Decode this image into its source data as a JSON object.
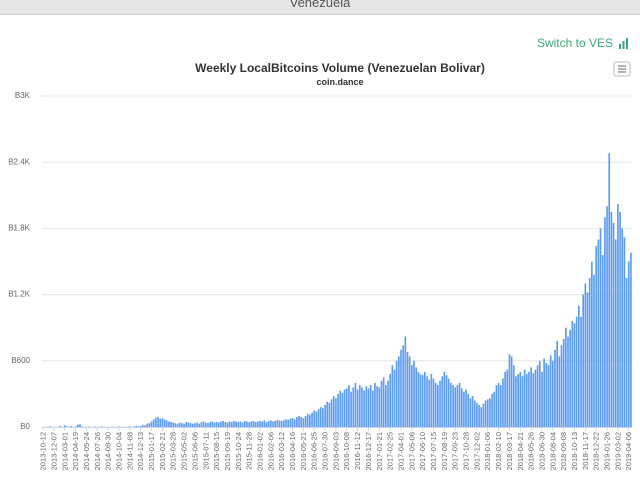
{
  "header": {
    "title": "Venezuela"
  },
  "switch_link": "Switch to VES",
  "chart_data": {
    "type": "bar",
    "title": "Weekly LocalBitcoins Volume (Venezuelan Bolivar)",
    "subtitle": "coin.dance",
    "color": "#5b9bf0",
    "grid": true,
    "ylim": [
      0,
      3000
    ],
    "yticks": [
      {
        "value": 0,
        "label": "B0"
      },
      {
        "value": 600,
        "label": "B600"
      },
      {
        "value": 1200,
        "label": "B1.2K"
      },
      {
        "value": 1800,
        "label": "B1.8K"
      },
      {
        "value": 2400,
        "label": "B2.4K"
      },
      {
        "value": 3000,
        "label": "B3K"
      }
    ],
    "categories": [
      "2013-10-12",
      null,
      null,
      null,
      null,
      "2013-12-07",
      null,
      null,
      null,
      null,
      "2014-03-01",
      null,
      null,
      null,
      null,
      "2014-04-19",
      null,
      null,
      null,
      null,
      "2014-05-24",
      null,
      null,
      null,
      null,
      "2014-07-26",
      null,
      null,
      null,
      null,
      "2014-08-30",
      null,
      null,
      null,
      null,
      "2014-10-04",
      null,
      null,
      null,
      null,
      "2014-11-08",
      null,
      null,
      null,
      null,
      "2014-12-13",
      null,
      null,
      null,
      null,
      "2015-01-17",
      null,
      null,
      null,
      null,
      "2015-02-21",
      null,
      null,
      null,
      null,
      "2015-03-28",
      null,
      null,
      null,
      null,
      "2015-05-02",
      null,
      null,
      null,
      null,
      "2015-06-06",
      null,
      null,
      null,
      null,
      "2015-07-11",
      null,
      null,
      null,
      null,
      "2015-08-15",
      null,
      null,
      null,
      null,
      "2015-09-19",
      null,
      null,
      null,
      null,
      "2015-10-24",
      null,
      null,
      null,
      null,
      "2015-11-28",
      null,
      null,
      null,
      null,
      "2016-01-02",
      null,
      null,
      null,
      null,
      "2016-02-06",
      null,
      null,
      null,
      null,
      "2016-03-12",
      null,
      null,
      null,
      null,
      "2016-04-16",
      null,
      null,
      null,
      null,
      "2016-05-21",
      null,
      null,
      null,
      null,
      "2016-06-25",
      null,
      null,
      null,
      null,
      "2016-07-30",
      null,
      null,
      null,
      null,
      "2016-09-03",
      null,
      null,
      null,
      null,
      "2016-10-08",
      null,
      null,
      null,
      null,
      "2016-11-12",
      null,
      null,
      null,
      null,
      "2016-12-17",
      null,
      null,
      null,
      null,
      "2017-01-21",
      null,
      null,
      null,
      null,
      "2017-02-25",
      null,
      null,
      null,
      null,
      "2017-04-01",
      null,
      null,
      null,
      null,
      "2017-05-06",
      null,
      null,
      null,
      null,
      "2017-06-10",
      null,
      null,
      null,
      null,
      "2017-07-15",
      null,
      null,
      null,
      null,
      "2017-08-19",
      null,
      null,
      null,
      null,
      "2017-09-23",
      null,
      null,
      null,
      null,
      "2017-10-28",
      null,
      null,
      null,
      null,
      "2017-12-02",
      null,
      null,
      null,
      null,
      "2018-01-06",
      null,
      null,
      null,
      null,
      "2018-02-10",
      null,
      null,
      null,
      null,
      "2018-03-17",
      null,
      null,
      null,
      null,
      "2018-04-21",
      null,
      null,
      null,
      null,
      "2018-05-26",
      null,
      null,
      null,
      null,
      "2018-06-30",
      null,
      null,
      null,
      null,
      "2018-08-04",
      null,
      null,
      null,
      null,
      "2018-09-08",
      null,
      null,
      null,
      null,
      "2018-10-13",
      null,
      null,
      null,
      null,
      "2018-11-17",
      null,
      null,
      null,
      null,
      "2018-12-22",
      null,
      null,
      null,
      null,
      "2019-01-26",
      null,
      null,
      null,
      null,
      "2019-03-02",
      null,
      null,
      null,
      null,
      "2019-04-06",
      null
    ],
    "values": [
      0,
      0,
      0,
      5,
      3,
      0,
      0,
      0,
      10,
      0,
      15,
      5,
      0,
      10,
      0,
      5,
      20,
      25,
      5,
      0,
      0,
      5,
      0,
      0,
      3,
      0,
      0,
      5,
      0,
      0,
      0,
      0,
      3,
      0,
      0,
      5,
      0,
      0,
      0,
      3,
      5,
      0,
      5,
      10,
      5,
      10,
      20,
      15,
      30,
      35,
      50,
      70,
      85,
      90,
      75,
      80,
      70,
      60,
      50,
      45,
      40,
      35,
      30,
      40,
      35,
      30,
      45,
      40,
      35,
      30,
      35,
      40,
      30,
      45,
      50,
      40,
      35,
      45,
      50,
      40,
      45,
      40,
      50,
      55,
      45,
      40,
      50,
      45,
      55,
      50,
      45,
      50,
      40,
      55,
      50,
      45,
      50,
      55,
      45,
      50,
      55,
      50,
      60,
      45,
      55,
      60,
      50,
      55,
      65,
      60,
      55,
      60,
      70,
      65,
      75,
      80,
      70,
      90,
      100,
      90,
      80,
      100,
      120,
      110,
      130,
      150,
      140,
      160,
      180,
      170,
      200,
      230,
      220,
      250,
      280,
      260,
      300,
      330,
      310,
      340,
      350,
      380,
      320,
      360,
      400,
      340,
      380,
      360,
      330,
      370,
      350,
      380,
      330,
      400,
      370,
      360,
      420,
      450,
      380,
      420,
      480,
      560,
      520,
      600,
      640,
      700,
      740,
      820,
      680,
      640,
      560,
      600,
      540,
      500,
      480,
      470,
      500,
      460,
      430,
      480,
      440,
      400,
      380,
      420,
      460,
      500,
      470,
      440,
      400,
      380,
      360,
      380,
      400,
      350,
      320,
      340,
      300,
      260,
      280,
      240,
      220,
      200,
      180,
      210,
      240,
      250,
      260,
      300,
      320,
      380,
      400,
      380,
      440,
      500,
      520,
      660,
      640,
      560,
      460,
      480,
      500,
      460,
      520,
      480,
      500,
      540,
      490,
      520,
      560,
      600,
      500,
      620,
      580,
      560,
      650,
      600,
      700,
      780,
      640,
      740,
      800,
      900,
      820,
      880,
      960,
      940,
      1000,
      1100,
      1000,
      1200,
      1300,
      1220,
      1350,
      1500,
      1380,
      1640,
      1700,
      1800,
      1560,
      1900,
      2000,
      2480,
      1950,
      1850,
      1700,
      2020,
      1950,
      1800,
      1720,
      1350,
      1500,
      1580
    ]
  }
}
